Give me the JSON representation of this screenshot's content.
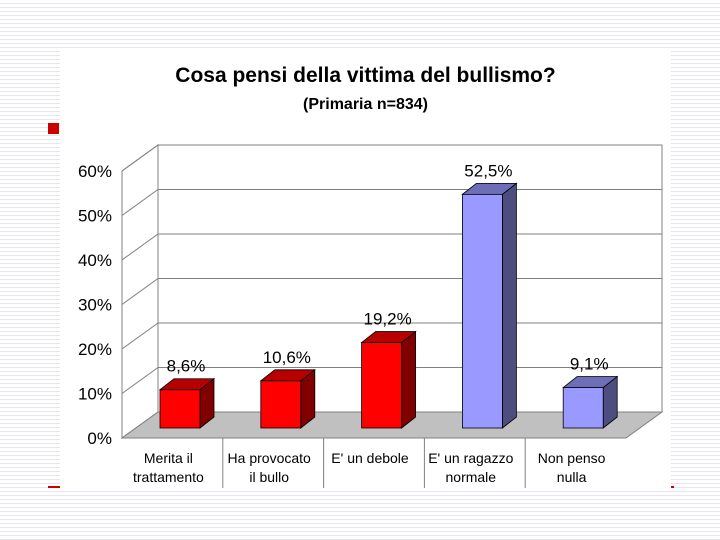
{
  "chart_data": {
    "type": "bar",
    "title": "Cosa pensi della vittima del bullismo?",
    "subtitle": "(Primaria n=834)",
    "categories": [
      [
        "Merita il",
        "trattamento"
      ],
      [
        "Ha provocato",
        "il bullo"
      ],
      [
        "E' un debole"
      ],
      [
        "E' un ragazzo",
        "normale"
      ],
      [
        "Non penso",
        "nulla"
      ]
    ],
    "values": [
      8.6,
      10.6,
      19.2,
      52.5,
      9.1
    ],
    "value_labels": [
      "8,6%",
      "10,6%",
      "19,2%",
      "52,5%",
      "9,1%"
    ],
    "bar_colors": [
      "#ff0000",
      "#ff0000",
      "#ff0000",
      "#9999ff",
      "#9999ff"
    ],
    "ylim": [
      0,
      60
    ],
    "yticks": [
      0,
      10,
      20,
      30,
      40,
      50,
      60
    ],
    "ytick_labels": [
      "0%",
      "10%",
      "20%",
      "30%",
      "40%",
      "50%",
      "60%"
    ],
    "grid": true,
    "style": "3d"
  }
}
